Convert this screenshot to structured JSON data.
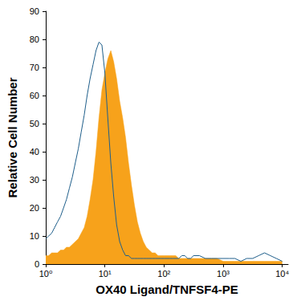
{
  "chart_data": {
    "type": "line",
    "x_label": "OX40 Ligand/TNFSF4-PE",
    "y_label": "Relative Cell Number",
    "log": "x",
    "grid": false,
    "xlim": [
      1,
      12589
    ],
    "xticks": [
      {
        "value": 1,
        "label": "10⁰"
      },
      {
        "value": 10,
        "label": "10¹"
      },
      {
        "value": 100,
        "label": "10²"
      },
      {
        "value": 1000,
        "label": "10³"
      },
      {
        "value": 10000,
        "label": "10⁴"
      }
    ],
    "ylim": [
      0,
      90
    ],
    "yticks": [
      0,
      10,
      20,
      30,
      40,
      50,
      60,
      70,
      80,
      90
    ],
    "x": [
      1,
      1.12,
      1.26,
      1.41,
      1.58,
      1.78,
      2,
      2.24,
      2.51,
      2.82,
      3.16,
      3.55,
      3.98,
      4.47,
      5.01,
      5.62,
      6.31,
      7.08,
      7.94,
      8.91,
      10,
      11.2,
      12.6,
      14.1,
      15.8,
      17.8,
      20,
      22.4,
      25.1,
      28.2,
      31.6,
      35.5,
      39.8,
      44.7,
      50.1,
      56.2,
      63.1,
      70.8,
      79.4,
      89.1,
      100,
      112,
      126,
      141,
      158,
      178,
      200,
      224,
      251,
      282,
      316,
      398,
      501,
      631,
      794,
      1000,
      1259,
      1585,
      1995,
      2512,
      3162,
      3981,
      5012,
      6310,
      7943,
      10000
    ],
    "series": [
      {
        "type": "area",
        "color": "#f7a21b",
        "values": [
          3,
          3,
          4,
          4,
          4,
          5,
          5,
          6,
          6,
          7,
          8,
          9,
          11,
          13,
          17,
          23,
          30,
          40,
          52,
          62,
          68,
          73,
          76,
          72,
          66,
          58,
          52,
          45,
          36,
          28,
          21,
          15,
          11,
          8,
          6,
          5,
          4,
          4,
          3,
          3,
          3,
          3,
          3,
          3,
          3,
          2,
          2,
          2,
          2,
          2,
          2,
          2,
          2,
          2,
          2,
          1,
          1,
          1,
          1,
          1,
          1,
          1,
          1,
          1,
          1,
          1
        ]
      },
      {
        "type": "line",
        "color": "#1f5f8b",
        "values": [
          9,
          10,
          11,
          13,
          15,
          17,
          20,
          23,
          27,
          31,
          36,
          41,
          47,
          53,
          60,
          66,
          71,
          76,
          79,
          78,
          68,
          52,
          36,
          24,
          14,
          8,
          5,
          3,
          3,
          2,
          2,
          2,
          2,
          2,
          2,
          2,
          2,
          2,
          2,
          2,
          2,
          2,
          2,
          2,
          2,
          2,
          3,
          3,
          2,
          2,
          3,
          3,
          2,
          2,
          2,
          2,
          2,
          2,
          1,
          2,
          2,
          3,
          4,
          3,
          2,
          1
        ]
      }
    ]
  }
}
